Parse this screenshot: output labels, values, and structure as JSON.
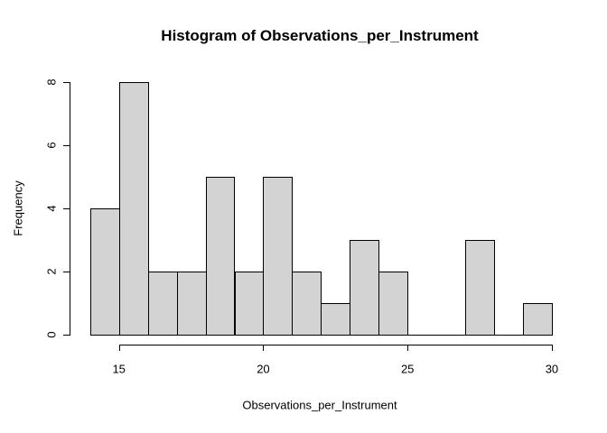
{
  "chart_data": {
    "type": "bar",
    "subtype": "histogram",
    "title": "Histogram of Observations_per_Instrument",
    "xlabel": "Observations_per_Instrument",
    "ylabel": "Frequency",
    "bin_start": 14,
    "bin_width": 1,
    "bin_edges": [
      14,
      15,
      16,
      17,
      18,
      19,
      20,
      21,
      22,
      23,
      24,
      25,
      26,
      27,
      28,
      29,
      30
    ],
    "counts": [
      4,
      8,
      2,
      2,
      5,
      2,
      5,
      2,
      1,
      3,
      2,
      0,
      0,
      3,
      0,
      1
    ],
    "x_ticks": [
      15,
      20,
      25,
      30
    ],
    "y_ticks": [
      0,
      2,
      4,
      6,
      8
    ],
    "xlim": [
      14,
      30
    ],
    "ylim": [
      0,
      8
    ],
    "bar_fill": "#d3d3d3",
    "bar_border": "#000000",
    "grid": false,
    "legend": false
  }
}
